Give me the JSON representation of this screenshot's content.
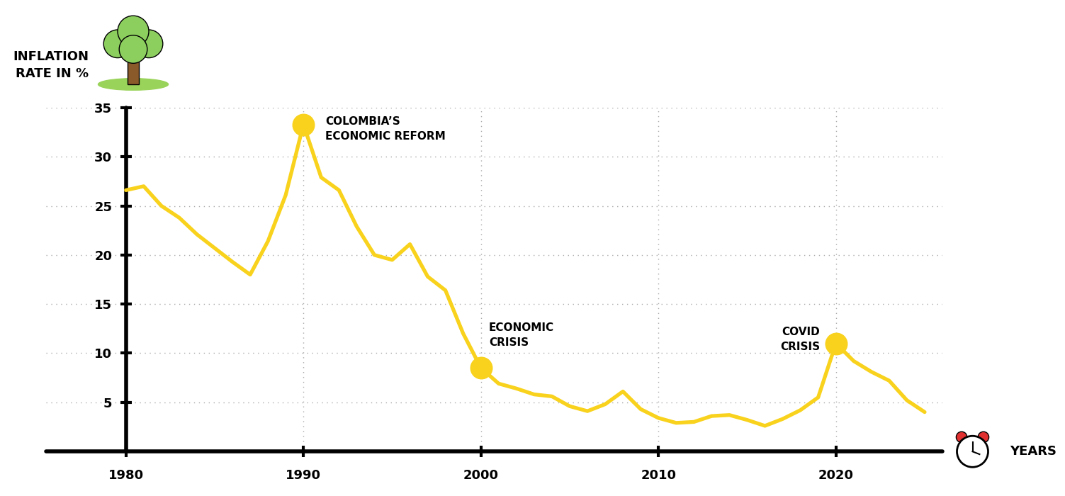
{
  "chart_data": {
    "type": "line",
    "y_label": "INFLATION\nRATE IN %",
    "x_label": "YEARS",
    "x": [
      1980,
      1981,
      1982,
      1983,
      1984,
      1985,
      1986,
      1987,
      1988,
      1989,
      1990,
      1991,
      1992,
      1993,
      1994,
      1995,
      1996,
      1997,
      1998,
      1999,
      2000,
      2001,
      2002,
      2003,
      2004,
      2005,
      2006,
      2007,
      2008,
      2009,
      2010,
      2011,
      2012,
      2013,
      2014,
      2015,
      2016,
      2017,
      2018,
      2019,
      2020,
      2021,
      2022,
      2023,
      2024,
      2025
    ],
    "values": [
      26.6,
      27.0,
      25.0,
      23.8,
      22.1,
      20.7,
      19.3,
      18.0,
      21.4,
      26.1,
      33.3,
      27.9,
      26.6,
      22.9,
      20.0,
      19.5,
      21.1,
      17.8,
      16.4,
      12.0,
      8.5,
      6.9,
      6.4,
      5.8,
      5.6,
      4.6,
      4.1,
      4.8,
      6.1,
      4.3,
      3.4,
      2.9,
      3.0,
      3.6,
      3.7,
      3.2,
      2.6,
      3.3,
      4.2,
      5.5,
      11.0,
      9.2,
      8.1,
      7.2,
      5.2,
      4.0
    ],
    "color": "#F8D21C",
    "xlim": [
      1975.5,
      2026
    ],
    "xticks": [
      1980,
      1990,
      2000,
      2010,
      2020
    ],
    "ylim": [
      0,
      35
    ],
    "yticks": [
      5,
      10,
      15,
      20,
      25,
      30,
      35
    ],
    "grid": true,
    "annotations": [
      {
        "text": "COLOMBIA’S\nECONOMIC REFORM",
        "x": 1990,
        "y": 33.3
      },
      {
        "text": "ECONOMIC\nCRISIS",
        "x": 2000,
        "y": 8.5
      },
      {
        "text": "COVID\nCRISIS",
        "x": 2020,
        "y": 11.0
      }
    ]
  }
}
